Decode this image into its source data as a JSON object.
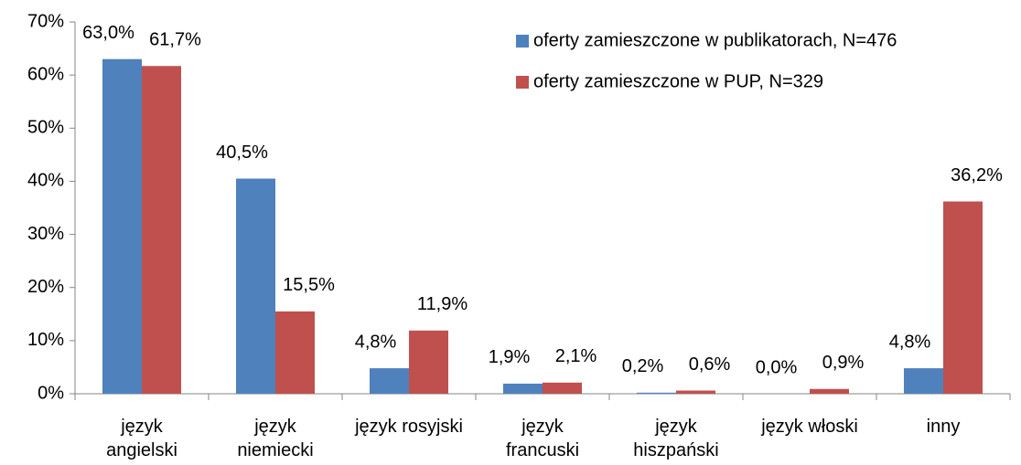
{
  "chart_data": {
    "type": "bar",
    "categories": [
      "język\nangielski",
      "język\nniemiecki",
      "język rosyjski",
      "język\nfrancuski",
      "język\nhiszpański",
      "język włoski",
      "inny"
    ],
    "series": [
      {
        "name": "oferty zamieszczone w publikatorach, N=476",
        "color": "#4f81bd",
        "values": [
          63.0,
          40.5,
          4.8,
          1.9,
          0.2,
          0.0,
          4.8
        ],
        "value_labels": [
          "63,0%",
          "40,5%",
          "4,8%",
          "1,9%",
          "0,2%",
          "0,0%",
          "4,8%"
        ]
      },
      {
        "name": "oferty zamieszczone w PUP, N=329",
        "color": "#c0504d",
        "values": [
          61.7,
          15.5,
          11.9,
          2.1,
          0.6,
          0.9,
          36.2
        ],
        "value_labels": [
          "61,7%",
          "15,5%",
          "11,9%",
          "2,1%",
          "0,6%",
          "0,9%",
          "36,2%"
        ]
      }
    ],
    "ylim": [
      0,
      70
    ],
    "yticks": [
      {
        "value": 0,
        "label": "0%"
      },
      {
        "value": 10,
        "label": "10%"
      },
      {
        "value": 20,
        "label": "20%"
      },
      {
        "value": 30,
        "label": "30%"
      },
      {
        "value": 40,
        "label": "40%"
      },
      {
        "value": 50,
        "label": "50%"
      },
      {
        "value": 60,
        "label": "60%"
      },
      {
        "value": 70,
        "label": "70%"
      }
    ],
    "grid": false,
    "legend": "top-right"
  }
}
